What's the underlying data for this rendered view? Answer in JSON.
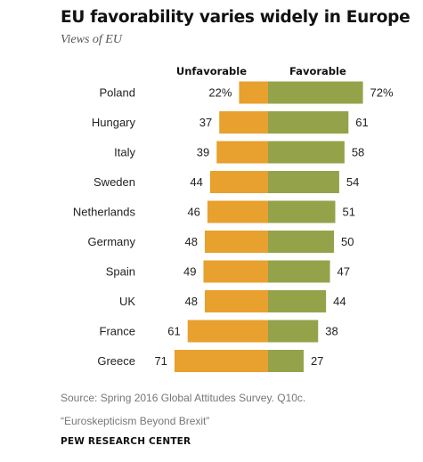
{
  "title": "EU favorability varies widely in Europe",
  "subtitle": "Views of EU",
  "source": "Source: Spring 2016 Global Attitudes Survey. Q10c.",
  "report": "“Euroskepticism Beyond Brexit”",
  "credit": "PEW RESEARCH CENTER",
  "colors": {
    "unfavorable": "#e8a02e",
    "favorable": "#94a34a"
  },
  "chart_data": {
    "type": "bar",
    "orientation": "diverging-horizontal",
    "categories": [
      "Poland",
      "Hungary",
      "Italy",
      "Sweden",
      "Netherlands",
      "Germany",
      "Spain",
      "UK",
      "France",
      "Greece"
    ],
    "series": [
      {
        "name": "Unfavorable",
        "values": [
          22,
          37,
          39,
          44,
          46,
          48,
          49,
          48,
          61,
          71
        ],
        "labels": [
          "22%",
          "37",
          "39",
          "44",
          "46",
          "48",
          "49",
          "48",
          "61",
          "71"
        ]
      },
      {
        "name": "Favorable",
        "values": [
          72,
          61,
          58,
          54,
          51,
          50,
          47,
          44,
          38,
          27
        ],
        "labels": [
          "72%",
          "61",
          "58",
          "54",
          "51",
          "50",
          "47",
          "44",
          "38",
          "27"
        ]
      }
    ],
    "legend": [
      "Unfavorable",
      "Favorable"
    ],
    "legend_position": "top",
    "grid": false
  }
}
